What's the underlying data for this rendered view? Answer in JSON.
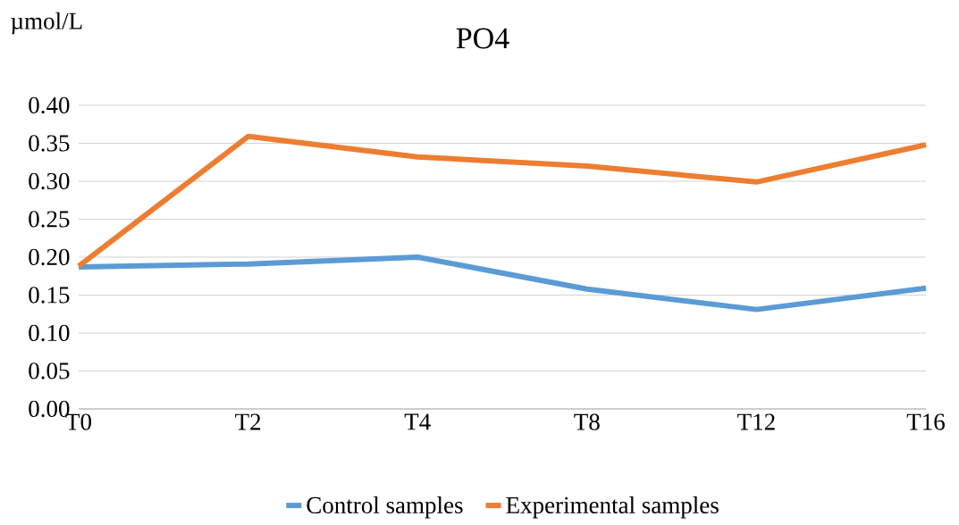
{
  "chart_data": {
    "type": "line",
    "title": "PO4",
    "ylabel": "µmol/L",
    "categories": [
      "T0",
      "T2",
      "T4",
      "T8",
      "T12",
      "T16"
    ],
    "series": [
      {
        "name": "Control samples",
        "color": "#5b9bd5",
        "values": [
          0.187,
          0.191,
          0.2,
          0.158,
          0.131,
          0.159
        ]
      },
      {
        "name": "Experimental samples",
        "color": "#ed7d31",
        "values": [
          0.188,
          0.359,
          0.332,
          0.32,
          0.299,
          0.348
        ]
      }
    ],
    "ylim": [
      0,
      0.4
    ],
    "yticks": [
      {
        "value": 0,
        "label": "0.00"
      },
      {
        "value": 0.05,
        "label": "0.05"
      },
      {
        "value": 0.1,
        "label": "0.10"
      },
      {
        "value": 0.15,
        "label": "0.15"
      },
      {
        "value": 0.2,
        "label": "0.20"
      },
      {
        "value": 0.25,
        "label": "0.25"
      },
      {
        "value": 0.3,
        "label": "0.30"
      },
      {
        "value": 0.35,
        "label": "0.35"
      },
      {
        "value": 0.4,
        "label": "0.40"
      }
    ],
    "grid": "y",
    "legend": "bottom",
    "marker": "none",
    "line_style": "solid"
  }
}
